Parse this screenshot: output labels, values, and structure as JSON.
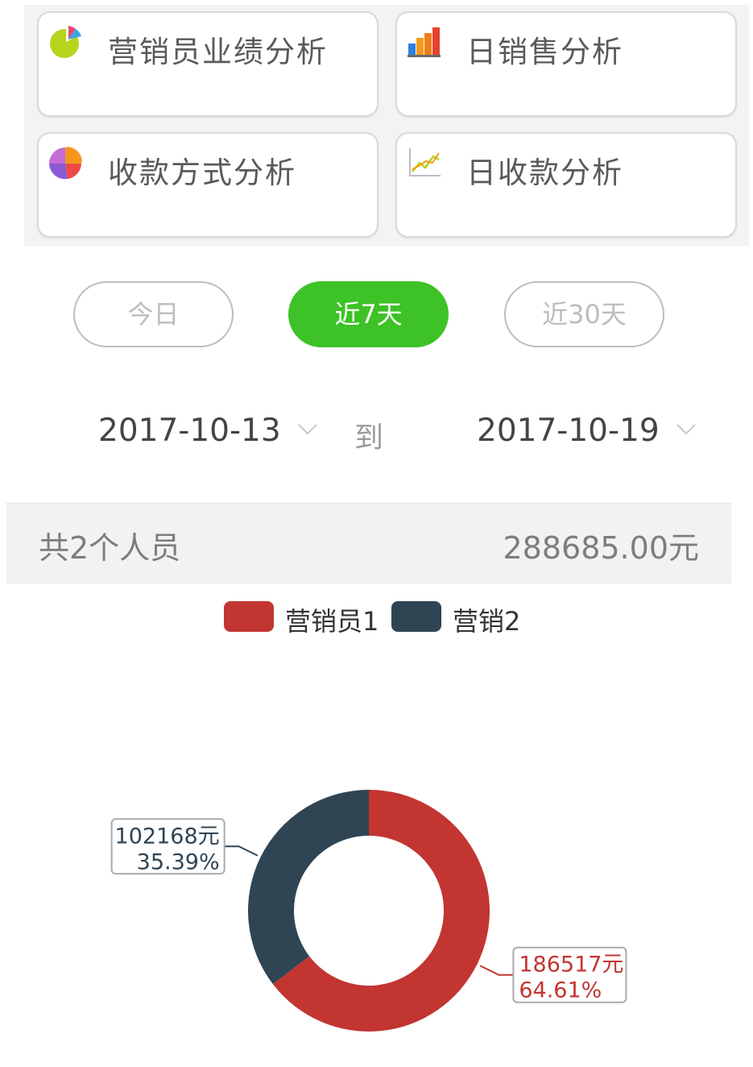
{
  "menu": {
    "cards": [
      {
        "label": "营销员业绩分析",
        "icon": "pie-chart-icon"
      },
      {
        "label": "日销售分析",
        "icon": "bar-chart-icon"
      },
      {
        "label": "收款方式分析",
        "icon": "pie-chart-icon"
      },
      {
        "label": "日收款分析",
        "icon": "line-chart-icon"
      }
    ]
  },
  "range_tabs": [
    {
      "label": "今日",
      "active": false
    },
    {
      "label": "近7天",
      "active": true
    },
    {
      "label": "近30天",
      "active": false
    }
  ],
  "date_range": {
    "start": "2017-10-13",
    "separator": "到",
    "end": "2017-10-19"
  },
  "summary": {
    "count_text": "共2个人员",
    "total_text": "288685.00元"
  },
  "colors": {
    "accent_green": "#3dc227",
    "series_red": "#c23531",
    "series_navy": "#2f4554"
  },
  "chart_data": {
    "type": "pie",
    "legend_position": "top-center",
    "series": [
      {
        "name": "营销员1",
        "value": 186517,
        "percent": "64.61%",
        "label_value": "186517元",
        "label_percent": "64.61%",
        "color": "#c23531"
      },
      {
        "name": "营销2",
        "value": 102168,
        "percent": "35.39%",
        "label_value": "102168元",
        "label_percent": "35.39%",
        "color": "#2f4554"
      }
    ]
  }
}
